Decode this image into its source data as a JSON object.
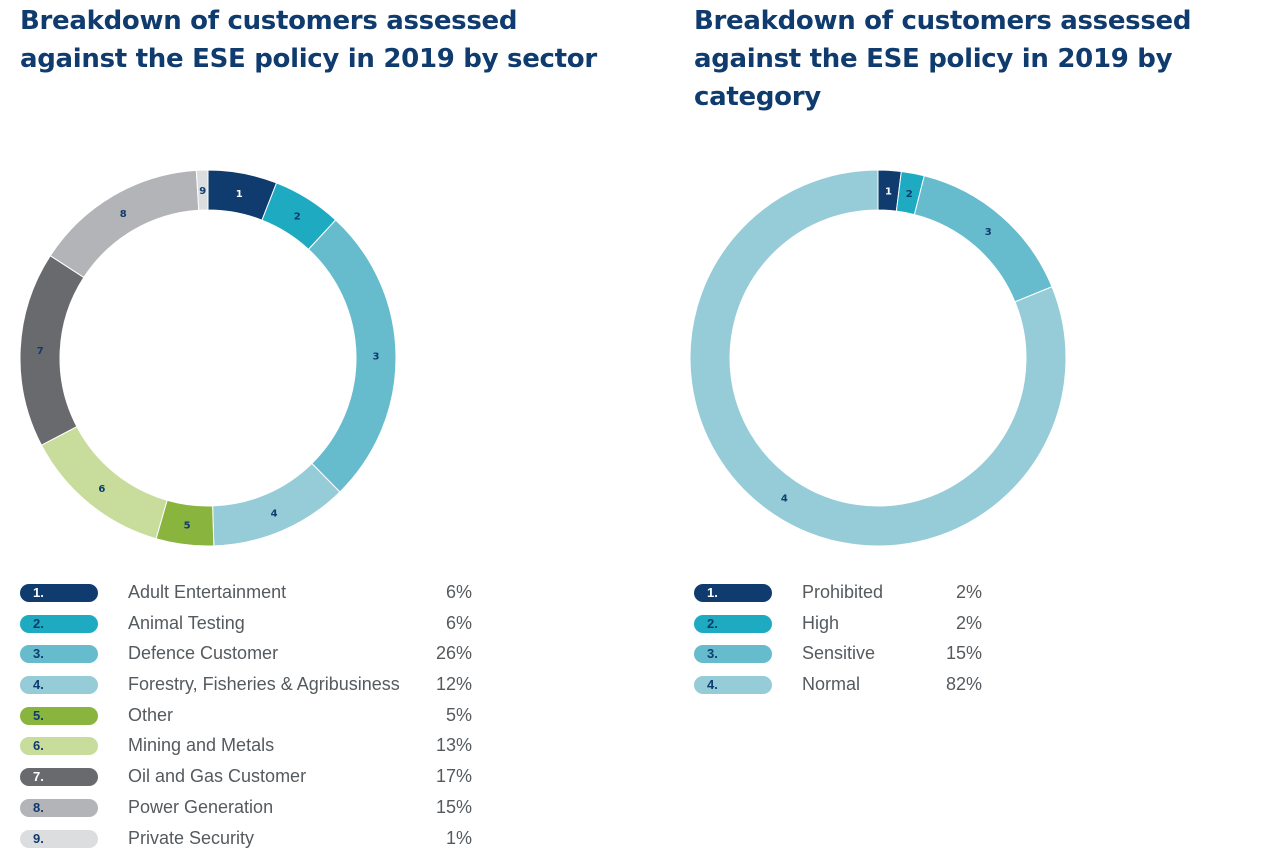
{
  "chart_data": [
    {
      "type": "pie",
      "variant": "donut",
      "title": "Breakdown of customers assessed against the ESE policy in 2019 by sector",
      "segments": [
        {
          "index": "1",
          "legend_index": "1.",
          "name": "Adult Entertainment",
          "value": 6,
          "value_label": "6%",
          "color": "#0f3b6e"
        },
        {
          "index": "2",
          "legend_index": "2.",
          "name": "Animal Testing",
          "value": 6,
          "value_label": "6%",
          "color": "#1eabc2"
        },
        {
          "index": "3",
          "legend_index": "3.",
          "name": "Defence Customer",
          "value": 26,
          "value_label": "26%",
          "color": "#66bccc"
        },
        {
          "index": "4",
          "legend_index": "4.",
          "name": "Forestry, Fisheries & Agribusiness",
          "value": 12,
          "value_label": "12%",
          "color": "#95ccd8"
        },
        {
          "index": "5",
          "legend_index": "5.",
          "name": "Other",
          "value": 5,
          "value_label": "5%",
          "color": "#89b53f"
        },
        {
          "index": "6",
          "legend_index": "6.",
          "name": "Mining and Metals",
          "value": 13,
          "value_label": "13%",
          "color": "#c8dc9b"
        },
        {
          "index": "7",
          "legend_index": "7.",
          "name": "Oil and Gas Customer",
          "value": 17,
          "value_label": "17%",
          "color": "#686a6d"
        },
        {
          "index": "8",
          "legend_index": "8.",
          "name": "Power Generation",
          "value": 15,
          "value_label": "15%",
          "color": "#b2b4b8"
        },
        {
          "index": "9",
          "legend_index": "9.",
          "name": "Private Security",
          "value": 1,
          "value_label": "1%",
          "color": "#dcdddf"
        }
      ]
    },
    {
      "type": "pie",
      "variant": "donut",
      "title": "Breakdown of customers assessed against the ESE policy in 2019 by category",
      "segments": [
        {
          "index": "1",
          "legend_index": "1.",
          "name": "Prohibited",
          "value": 2,
          "value_label": "2%",
          "color": "#0f3b6e"
        },
        {
          "index": "2",
          "legend_index": "2.",
          "name": "High",
          "value": 2,
          "value_label": "2%",
          "color": "#1eabc2"
        },
        {
          "index": "3",
          "legend_index": "3.",
          "name": "Sensitive",
          "value": 15,
          "value_label": "15%",
          "color": "#66bccc"
        },
        {
          "index": "4",
          "legend_index": "4.",
          "name": "Normal",
          "value": 82,
          "value_label": "82%",
          "color": "#95ccd8"
        }
      ]
    }
  ]
}
